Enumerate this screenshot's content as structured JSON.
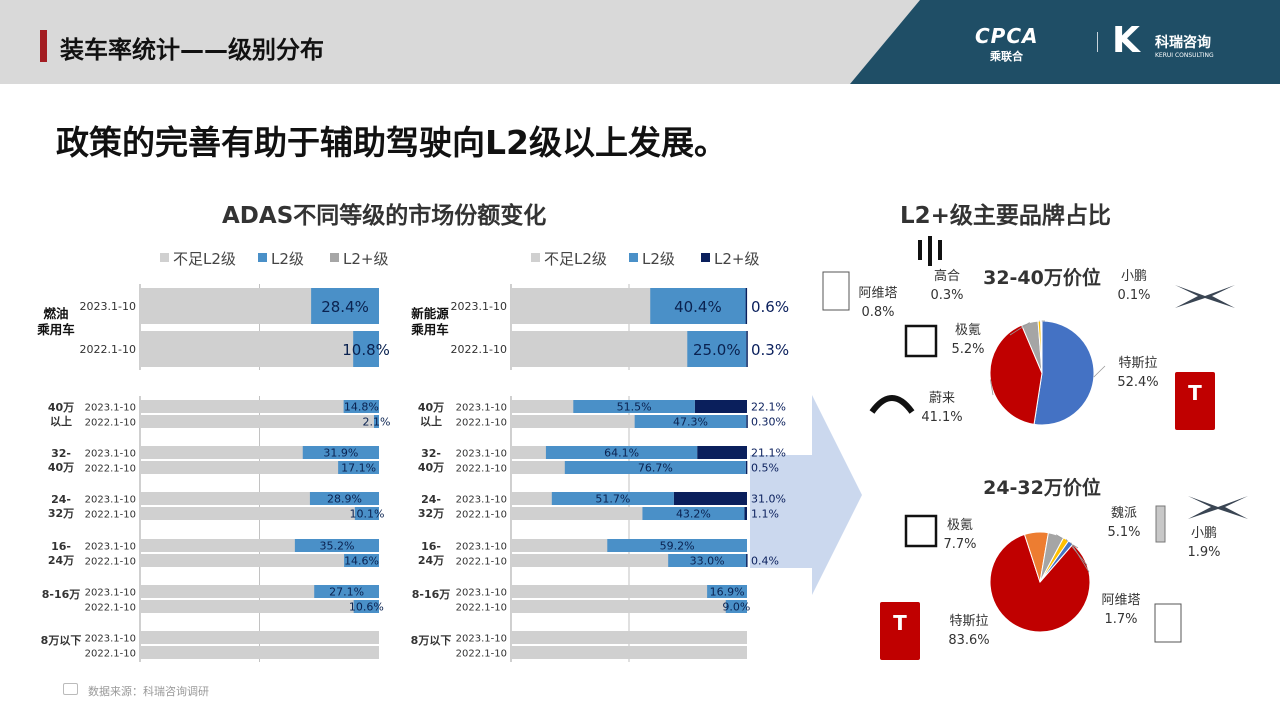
{
  "header": {
    "title": "装车率统计——级别分布"
  },
  "logos": {
    "cpca": "CPCA",
    "cpca_sub": "乘联合",
    "kerui": "科瑞咨询",
    "kerui_sub": "KERUI CONSULTING"
  },
  "headline": "政策的完善有助于辅助驾驶向L2级以上发展。",
  "left_title": "ADAS不同等级的市场份额变化",
  "right_title": "L2+级主要品牌占比",
  "source": "数据来源：科瑞咨询调研",
  "colors": {
    "grey": "#d0d0d0",
    "l2": "#4a90c8",
    "l2plus": "#0a1f5c",
    "legend_grey": "#a6a6a6",
    "arrow": "#b9cbe8"
  },
  "legend": [
    "不足L2级",
    "L2级",
    "L2+级"
  ],
  "chart_data": [
    {
      "type": "bar",
      "title": "燃油乘用车",
      "top_rows": [
        {
          "period": "2023.1-10",
          "l2": 28.4,
          "l2plus": 0
        },
        {
          "period": "2022.1-10",
          "l2": 10.8,
          "l2plus": 0
        }
      ],
      "groups": [
        {
          "label": "40万以上",
          "rows": [
            {
              "period": "2023.1-10",
              "l2": 14.8,
              "l2plus": 0
            },
            {
              "period": "2022.1-10",
              "l2": 2.1,
              "l2plus": 0
            }
          ]
        },
        {
          "label": "32-40万",
          "rows": [
            {
              "period": "2023.1-10",
              "l2": 31.9,
              "l2plus": 0
            },
            {
              "period": "2022.1-10",
              "l2": 17.1,
              "l2plus": 0
            }
          ]
        },
        {
          "label": "24-32万",
          "rows": [
            {
              "period": "2023.1-10",
              "l2": 28.9,
              "l2plus": 0
            },
            {
              "period": "2022.1-10",
              "l2": 10.1,
              "l2plus": 0
            }
          ]
        },
        {
          "label": "16-24万",
          "rows": [
            {
              "period": "2023.1-10",
              "l2": 35.2,
              "l2plus": 0
            },
            {
              "period": "2022.1-10",
              "l2": 14.6,
              "l2plus": 0
            }
          ]
        },
        {
          "label": "8-16万",
          "rows": [
            {
              "period": "2023.1-10",
              "l2": 27.1,
              "l2plus": 0
            },
            {
              "period": "2022.1-10",
              "l2": 10.6,
              "l2plus": 0
            }
          ]
        },
        {
          "label": "8万以下",
          "rows": [
            {
              "period": "2023.1-10",
              "l2": null,
              "l2plus": 0
            },
            {
              "period": "2022.1-10",
              "l2": null,
              "l2plus": 0
            }
          ]
        }
      ]
    },
    {
      "type": "bar",
      "title": "新能源乘用车",
      "top_rows": [
        {
          "period": "2023.1-10",
          "l2": 40.4,
          "l2plus": 0.6
        },
        {
          "period": "2022.1-10",
          "l2": 25.0,
          "l2plus": 0.3
        }
      ],
      "groups": [
        {
          "label": "40万以上",
          "rows": [
            {
              "period": "2023.1-10",
              "l2": 51.5,
              "l2plus": 22.1
            },
            {
              "period": "2022.1-10",
              "l2": 47.3,
              "l2plus": 0.3
            }
          ]
        },
        {
          "label": "32-40万",
          "rows": [
            {
              "period": "2023.1-10",
              "l2": 64.1,
              "l2plus": 21.1
            },
            {
              "period": "2022.1-10",
              "l2": 76.7,
              "l2plus": 0.5
            }
          ]
        },
        {
          "label": "24-32万",
          "rows": [
            {
              "period": "2023.1-10",
              "l2": 51.7,
              "l2plus": 31.0
            },
            {
              "period": "2022.1-10",
              "l2": 43.2,
              "l2plus": 1.1
            }
          ]
        },
        {
          "label": "16-24万",
          "rows": [
            {
              "period": "2023.1-10",
              "l2": 59.2,
              "l2plus": 0
            },
            {
              "period": "2022.1-10",
              "l2": 33.0,
              "l2plus": 0.4
            }
          ]
        },
        {
          "label": "8-16万",
          "rows": [
            {
              "period": "2023.1-10",
              "l2": 16.9,
              "l2plus": 0
            },
            {
              "period": "2022.1-10",
              "l2": 9.0,
              "l2plus": 0
            }
          ]
        },
        {
          "label": "8万以下",
          "rows": [
            {
              "period": "2023.1-10",
              "l2": null,
              "l2plus": 0
            },
            {
              "period": "2022.1-10",
              "l2": null,
              "l2plus": 0
            }
          ]
        }
      ]
    },
    {
      "type": "pie",
      "title": "32-40万价位",
      "slices": [
        {
          "label": "特斯拉",
          "value": 52.4,
          "color": "#4472c4"
        },
        {
          "label": "蔚来",
          "value": 41.1,
          "color": "#c00000"
        },
        {
          "label": "极氪",
          "value": 5.2,
          "color": "#a5a5a5"
        },
        {
          "label": "阿维塔",
          "value": 0.8,
          "color": "#ffc000"
        },
        {
          "label": "高合",
          "value": 0.3,
          "color": "#5b9bd5"
        },
        {
          "label": "小鹏",
          "value": 0.1,
          "color": "#70ad47"
        }
      ]
    },
    {
      "type": "pie",
      "title": "24-32万价位",
      "slices": [
        {
          "label": "特斯拉",
          "value": 83.6,
          "color": "#c00000"
        },
        {
          "label": "极氪",
          "value": 7.7,
          "color": "#ed7d31"
        },
        {
          "label": "魏派",
          "value": 5.1,
          "color": "#a5a5a5"
        },
        {
          "label": "小鹏",
          "value": 1.9,
          "color": "#ffc000"
        },
        {
          "label": "阿维塔",
          "value": 1.7,
          "color": "#4472c4"
        }
      ]
    }
  ]
}
